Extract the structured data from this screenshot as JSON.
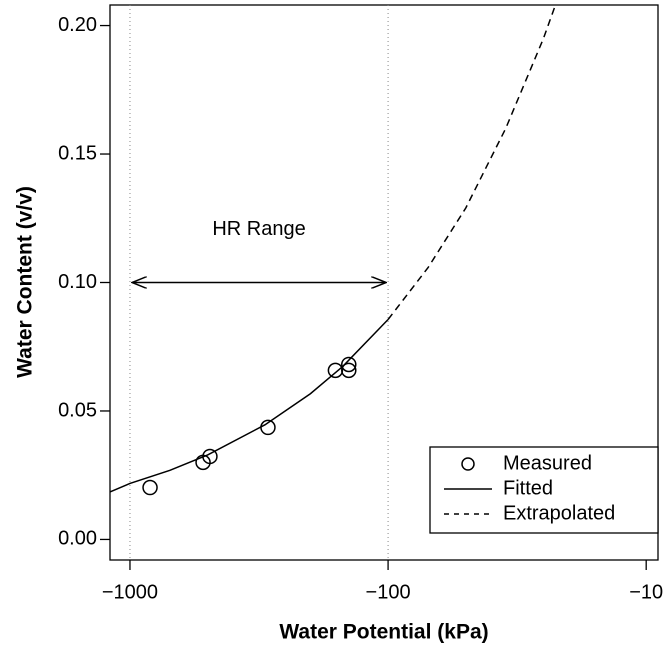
{
  "chart_data": {
    "type": "scatter",
    "xlabel": "Water Potential (kPa)",
    "ylabel": "Water Content (v/v)",
    "xscale": "log",
    "xlim": [
      -1195,
      -9
    ],
    "ylim": [
      -0.008,
      0.208
    ],
    "xticks": [
      {
        "value": -1000,
        "label": "−1000"
      },
      {
        "value": -100,
        "label": "−100"
      },
      {
        "value": -10,
        "label": "−10"
      }
    ],
    "yticks": [
      {
        "value": 0,
        "label": "0.00"
      },
      0.05,
      {
        "value": 0.1,
        "label": "0.10"
      },
      0.15,
      {
        "value": 0.2,
        "label": "0.20"
      }
    ],
    "vlines": [
      -1000,
      -100
    ],
    "annotation": {
      "text": "HR Range",
      "x": [
        -1000,
        -100
      ],
      "y": 0.1
    },
    "legend": "bottom-right",
    "series": [
      {
        "name": "Measured",
        "style": "points",
        "color": "#000000",
        "x": [
          -836,
          -521,
          -490,
          -292,
          -160,
          -142,
          -142
        ],
        "values": [
          0.0202,
          0.03,
          0.0323,
          0.0436,
          0.0658,
          0.0658,
          0.0681
        ]
      },
      {
        "name": "Fitted",
        "style": "solid",
        "color": "#000000",
        "x": [
          -1195,
          -1000,
          -700,
          -500,
          -300,
          -200,
          -150,
          -100
        ],
        "values": [
          0.0185,
          0.0218,
          0.0269,
          0.0329,
          0.0446,
          0.0567,
          0.0673,
          0.0856
        ]
      },
      {
        "name": "Extrapolated",
        "style": "dashed",
        "color": "#000000",
        "x": [
          -100,
          -70,
          -50,
          -35,
          -25,
          -22
        ],
        "values": [
          0.0856,
          0.1058,
          0.129,
          0.16,
          0.195,
          0.2106
        ]
      }
    ]
  }
}
